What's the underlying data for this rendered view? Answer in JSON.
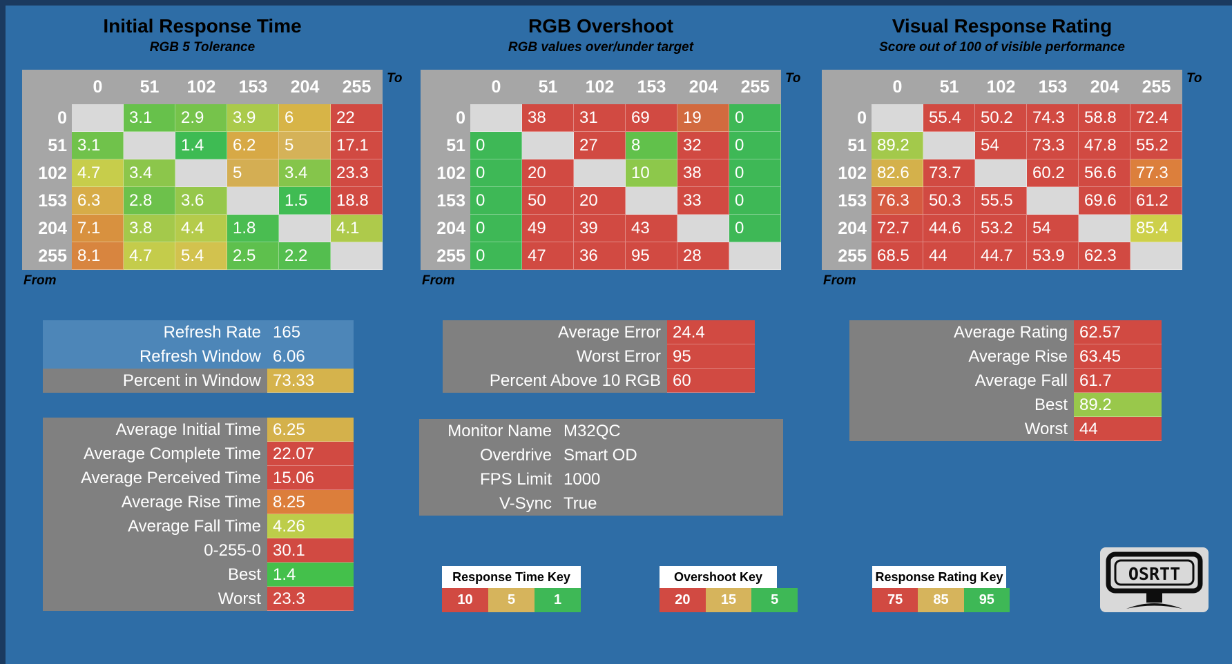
{
  "page": {
    "background": "#2e6da6",
    "edge_color": "#1b3a5f"
  },
  "chart_data": [
    {
      "type": "heatmap",
      "title": "Initial Response Time",
      "subtitle": "RGB 5 Tolerance",
      "x_axis_label": "To",
      "y_axis_label": "From",
      "x_ticks": [
        "0",
        "51",
        "102",
        "153",
        "204",
        "255"
      ],
      "y_ticks": [
        "0",
        "51",
        "102",
        "153",
        "204",
        "255"
      ],
      "values": [
        [
          null,
          3.1,
          2.9,
          3.9,
          6,
          22
        ],
        [
          3.1,
          null,
          1.4,
          6.2,
          5,
          17.1
        ],
        [
          4.7,
          3.4,
          null,
          5,
          3.4,
          23.3
        ],
        [
          6.3,
          2.8,
          3.6,
          null,
          1.5,
          18.8
        ],
        [
          7.1,
          3.8,
          4.4,
          1.8,
          null,
          4.1
        ],
        [
          8.1,
          4.7,
          5.4,
          2.5,
          2.2,
          null
        ]
      ],
      "cell_colors": [
        [
          null,
          "#67c14b",
          "#76c34b",
          "#aaca4b",
          "#d7b447",
          "#d14a42"
        ],
        [
          "#70c24b",
          null,
          "#3ebb53",
          "#d7a946",
          "#d5b258",
          "#d14a42"
        ],
        [
          "#c7cd4b",
          "#8cc64b",
          null,
          "#d4ae53",
          "#85c54b",
          "#d14a42"
        ],
        [
          "#d7ac48",
          "#6dc14b",
          "#96c74b",
          null,
          "#40bc53",
          "#d14a42"
        ],
        [
          "#d8913f",
          "#a4c94b",
          "#b5cb4b",
          "#4abd51",
          null,
          "#aeca4b"
        ],
        [
          "#d8853f",
          "#c4cc4b",
          "#d2c24e",
          "#5ec04d",
          "#54be4f",
          null
        ]
      ],
      "patterns": [
        [
          0,
          3,
          "dots"
        ],
        [
          0,
          4,
          "hatch"
        ]
      ]
    },
    {
      "type": "heatmap",
      "title": "RGB Overshoot",
      "subtitle": "RGB values over/under target",
      "x_axis_label": "To",
      "y_axis_label": "From",
      "x_ticks": [
        "0",
        "51",
        "102",
        "153",
        "204",
        "255"
      ],
      "y_ticks": [
        "0",
        "51",
        "102",
        "153",
        "204",
        "255"
      ],
      "values": [
        [
          null,
          38,
          31,
          69,
          19,
          0
        ],
        [
          0,
          null,
          27,
          8,
          32,
          0
        ],
        [
          0,
          20,
          null,
          10,
          38,
          0
        ],
        [
          0,
          50,
          20,
          null,
          33,
          0
        ],
        [
          0,
          49,
          39,
          43,
          null,
          0
        ],
        [
          0,
          47,
          36,
          95,
          28,
          null
        ]
      ],
      "cell_colors": [
        [
          null,
          "#d14a42",
          "#d14a42",
          "#d14a42",
          "#d26a3f",
          "#3eb856"
        ],
        [
          "#3eb856",
          null,
          "#d14a42",
          "#61c14b",
          "#d14a42",
          "#3eb856"
        ],
        [
          "#3eb856",
          "#d14a42",
          null,
          "#8dc84b",
          "#d14a42",
          "#3eb856"
        ],
        [
          "#3eb856",
          "#d14a42",
          "#d14a42",
          null,
          "#d14a42",
          "#3eb856"
        ],
        [
          "#3eb856",
          "#d14a42",
          "#d14a42",
          "#d14a42",
          null,
          "#3eb856"
        ],
        [
          "#3eb856",
          "#d14a42",
          "#d14a42",
          "#d14a42",
          "#d14a42",
          null
        ]
      ],
      "patterns": [
        [
          0,
          4,
          "dots"
        ]
      ]
    },
    {
      "type": "heatmap",
      "title": "Visual Response Rating",
      "subtitle": "Score out of 100 of visible performance",
      "x_axis_label": "To",
      "y_axis_label": "From",
      "x_ticks": [
        "0",
        "51",
        "102",
        "153",
        "204",
        "255"
      ],
      "y_ticks": [
        "0",
        "51",
        "102",
        "153",
        "204",
        "255"
      ],
      "values": [
        [
          null,
          55.4,
          50.2,
          74.3,
          58.8,
          72.4
        ],
        [
          89.2,
          null,
          54,
          73.3,
          47.8,
          55.2
        ],
        [
          82.6,
          73.7,
          null,
          60.2,
          56.6,
          77.3
        ],
        [
          76.3,
          50.3,
          55.5,
          null,
          69.6,
          61.2
        ],
        [
          72.7,
          44.6,
          53.2,
          54,
          null,
          85.4
        ],
        [
          68.5,
          44,
          44.7,
          53.9,
          62.3,
          null
        ]
      ],
      "cell_colors": [
        [
          null,
          "#d14a42",
          "#d14a42",
          "#d14a42",
          "#d14a42",
          "#d14a42"
        ],
        [
          "#a3c94b",
          null,
          "#d14a42",
          "#d14a42",
          "#d14a42",
          "#d14a42"
        ],
        [
          "#d4b14b",
          "#d14a42",
          null,
          "#d14a42",
          "#d14a42",
          "#dc7f3c"
        ],
        [
          "#d55a40",
          "#d14a42",
          "#d14a42",
          null,
          "#d14a42",
          "#d14a42"
        ],
        [
          "#d14a42",
          "#d14a42",
          "#d14a42",
          "#d14a42",
          null,
          "#cdd04a"
        ],
        [
          "#d14a42",
          "#d14a42",
          "#d14a42",
          "#d14a42",
          "#d14a42",
          null
        ]
      ],
      "patterns": [
        [
          2,
          5,
          "hatch"
        ]
      ]
    }
  ],
  "summary_boxes": [
    {
      "id": "refresh",
      "rows": [
        {
          "label": "Refresh Rate",
          "value": "165",
          "label_bg": "#4d86b8",
          "value_bg": "#4d86b8"
        },
        {
          "label": "Refresh Window",
          "value": "6.06",
          "label_bg": "#4d86b8",
          "value_bg": "#4d86b8"
        },
        {
          "label": "Percent in Window",
          "value": "73.33",
          "label_bg": "#808080",
          "value_bg": "#d5b34c"
        }
      ]
    },
    {
      "id": "averages",
      "rows": [
        {
          "label": "Average Initial Time",
          "value": "6.25",
          "value_bg": "#d4b14b"
        },
        {
          "label": "Average Complete Time",
          "value": "22.07",
          "value_bg": "#d14a42"
        },
        {
          "label": "Average Perceived Time",
          "value": "15.06",
          "value_bg": "#d14a42"
        },
        {
          "label": "Average Rise Time",
          "value": "8.25",
          "value_bg": "#dc7e3b"
        },
        {
          "label": "Average Fall Time",
          "value": "4.26",
          "value_bg": "#bdcd4a"
        },
        {
          "label": "0-255-0",
          "value": "30.1",
          "value_bg": "#d14a42"
        },
        {
          "label": "Best",
          "value": "1.4",
          "value_bg": "#44c04b"
        },
        {
          "label": "Worst",
          "value": "23.3",
          "value_bg": "#d14a42"
        }
      ]
    },
    {
      "id": "error",
      "rows": [
        {
          "label": "Average Error",
          "value": "24.4",
          "value_bg": "#d14a42"
        },
        {
          "label": "Worst Error",
          "value": "95",
          "value_bg": "#d14a42"
        },
        {
          "label": "Percent Above 10 RGB",
          "value": "60",
          "value_bg": "#d14a42"
        }
      ]
    },
    {
      "id": "monitor",
      "rows": [
        {
          "label": "Monitor Name",
          "value": "M32QC"
        },
        {
          "label": "Overdrive",
          "value": "Smart OD"
        },
        {
          "label": "FPS Limit",
          "value": "1000"
        },
        {
          "label": "V-Sync",
          "value": "True"
        }
      ]
    },
    {
      "id": "rating",
      "rows": [
        {
          "label": "Average Rating",
          "value": "62.57",
          "value_bg": "#d14a42"
        },
        {
          "label": "Average Rise",
          "value": "63.45",
          "value_bg": "#d14a42"
        },
        {
          "label": "Average Fall",
          "value": "61.7",
          "value_bg": "#d14a42"
        },
        {
          "label": "Best",
          "value": "89.2",
          "value_bg": "#99c84b"
        },
        {
          "label": "Worst",
          "value": "44",
          "value_bg": "#d14a42"
        }
      ]
    }
  ],
  "keys": [
    {
      "title": "Response Time Key",
      "cells": [
        {
          "label": "10",
          "bg": "#d14a42"
        },
        {
          "label": "5",
          "bg": "#d6b45c"
        },
        {
          "label": "1",
          "bg": "#3eb856"
        }
      ]
    },
    {
      "title": "Overshoot Key",
      "cells": [
        {
          "label": "20",
          "bg": "#d14a42"
        },
        {
          "label": "15",
          "bg": "#d6b45c"
        },
        {
          "label": "5",
          "bg": "#3eb856"
        }
      ]
    },
    {
      "title": "Response Rating Key",
      "cells": [
        {
          "label": "75",
          "bg": "#d14a42"
        },
        {
          "label": "85",
          "bg": "#d6b45c"
        },
        {
          "label": "95",
          "bg": "#3eb856"
        }
      ]
    }
  ],
  "logo": {
    "text": "OSRTT"
  }
}
